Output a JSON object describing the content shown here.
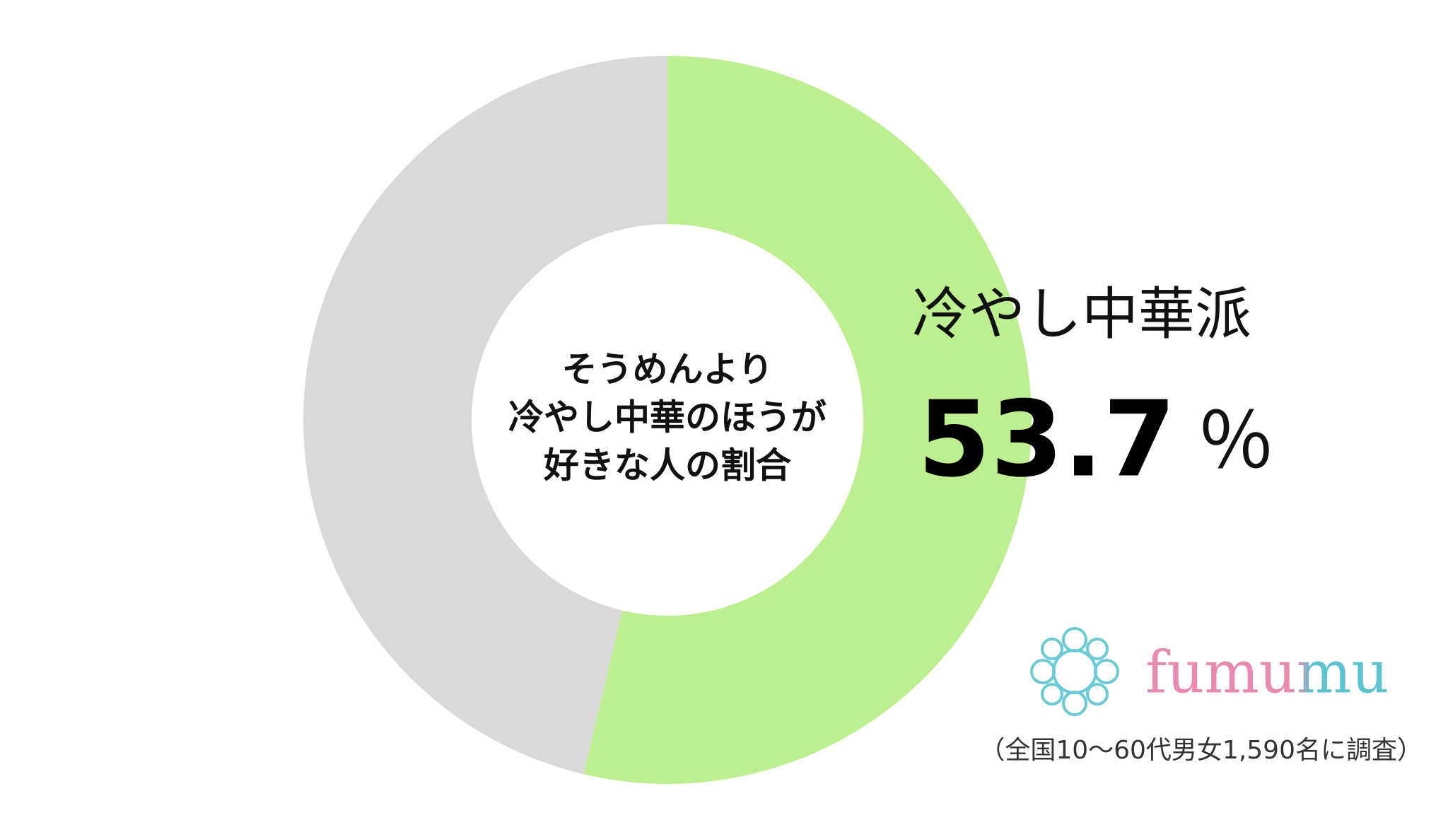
{
  "chart_data": {
    "type": "donut",
    "title_lines": [
      "そうめんより",
      "冷やし中華のほうが",
      "好きな人の割合"
    ],
    "categories": [
      "冷やし中華派",
      null
    ],
    "values": [
      53.7,
      46.3
    ],
    "value_labels": [
      "53.7",
      null
    ],
    "value_unit": "％",
    "colors": [
      "#bdef91",
      "#d9d9d9"
    ],
    "brand": "fumumu",
    "note": "（全国10～60代男女1,590名に調査）"
  }
}
